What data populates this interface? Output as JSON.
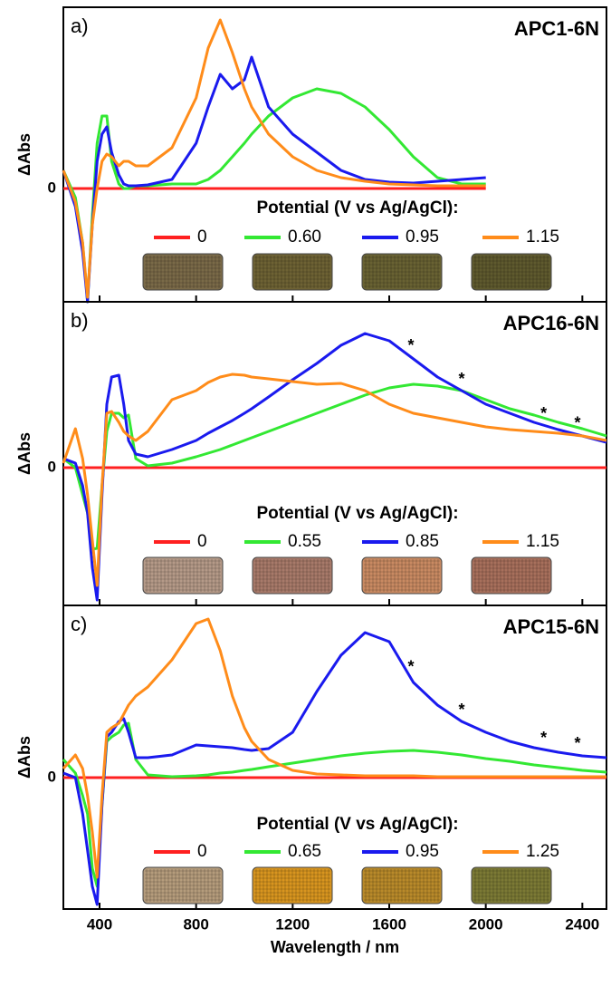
{
  "chart_data": [
    {
      "type": "line",
      "panel_label": "a)",
      "title": "APC1-6N",
      "ylabel": "ΔAbs",
      "legend_title": "Potential (V vs Ag/AgCl):",
      "xlim": [
        250,
        2500
      ],
      "xticks": [
        400,
        800,
        1200,
        1600,
        2000,
        2400
      ],
      "ylim": [
        -1.25,
        2.0
      ],
      "yticks": [
        0
      ],
      "x": [
        250,
        300,
        330,
        350,
        370,
        390,
        410,
        430,
        450,
        480,
        500,
        520,
        550,
        600,
        700,
        800,
        850,
        900,
        950,
        1000,
        1030,
        1100,
        1200,
        1300,
        1400,
        1500,
        1600,
        1700,
        1800,
        1900,
        2000,
        2100,
        2200,
        2300,
        2400,
        2500
      ],
      "series": [
        {
          "name": "0",
          "color": "#ff2020",
          "values": [
            0,
            0,
            0,
            0,
            0,
            0,
            0,
            0,
            0,
            0,
            0,
            0,
            0,
            0,
            0,
            0,
            0,
            0,
            0,
            0,
            0,
            0,
            0,
            0,
            0,
            0,
            0,
            0,
            0,
            0,
            0,
            null,
            null,
            null,
            null,
            null
          ]
        },
        {
          "name": "0.60",
          "color": "#33e833",
          "values": [
            0.2,
            -0.1,
            -0.6,
            -1.25,
            -0.3,
            0.5,
            0.8,
            0.8,
            0.3,
            0.05,
            0.0,
            0.0,
            0.03,
            0.03,
            0.05,
            0.05,
            0.1,
            0.2,
            0.35,
            0.5,
            0.6,
            0.8,
            1.0,
            1.1,
            1.05,
            0.9,
            0.65,
            0.35,
            0.12,
            0.05,
            0.05,
            null,
            null,
            null,
            null,
            null
          ]
        },
        {
          "name": "0.95",
          "color": "#1a1aee",
          "values": [
            0.2,
            -0.2,
            -0.7,
            -1.25,
            -0.4,
            0.3,
            0.6,
            0.68,
            0.4,
            0.15,
            0.05,
            0.03,
            0.03,
            0.04,
            0.1,
            0.5,
            0.9,
            1.26,
            1.1,
            1.2,
            1.45,
            0.9,
            0.6,
            0.4,
            0.2,
            0.1,
            0.07,
            0.06,
            0.08,
            0.1,
            0.12,
            null,
            null,
            null,
            null,
            null
          ]
        },
        {
          "name": "1.15",
          "color": "#ff8c1a",
          "values": [
            0.2,
            -0.15,
            -0.6,
            -1.2,
            -0.4,
            0.0,
            0.3,
            0.38,
            0.35,
            0.25,
            0.3,
            0.3,
            0.25,
            0.25,
            0.45,
            1.0,
            1.55,
            1.86,
            1.5,
            1.1,
            0.9,
            0.6,
            0.35,
            0.2,
            0.12,
            0.08,
            0.05,
            0.04,
            0.03,
            0.03,
            0.03,
            null,
            null,
            null,
            null,
            null
          ]
        }
      ]
    },
    {
      "type": "line",
      "panel_label": "b)",
      "title": "APC16-6N",
      "ylabel": "ΔAbs",
      "legend_title": "Potential (V vs Ag/AgCl):",
      "xlim": [
        250,
        2500
      ],
      "xticks": [
        400,
        800,
        1200,
        1600,
        2000,
        2400
      ],
      "ylim": [
        -1.52,
        1.83
      ],
      "yticks": [
        0
      ],
      "x": [
        250,
        300,
        330,
        350,
        370,
        390,
        410,
        430,
        450,
        480,
        500,
        520,
        550,
        600,
        700,
        800,
        850,
        900,
        950,
        1000,
        1030,
        1100,
        1200,
        1300,
        1400,
        1500,
        1600,
        1700,
        1800,
        1900,
        2000,
        2100,
        2200,
        2300,
        2400,
        2500
      ],
      "annotations": [
        {
          "text": "*",
          "x": 1690
        },
        {
          "text": "*",
          "x": 1900
        },
        {
          "text": "*",
          "x": 2240
        },
        {
          "text": "*",
          "x": 2380
        }
      ],
      "series": [
        {
          "name": "0",
          "color": "#ff2020",
          "values": [
            0,
            0,
            0,
            0,
            0,
            0,
            0,
            0,
            0,
            0,
            0,
            0,
            0,
            0,
            0,
            0,
            0,
            0,
            0,
            0,
            0,
            0,
            0,
            0,
            0,
            0,
            0,
            0,
            0,
            0,
            0,
            0,
            0,
            0,
            0,
            0
          ]
        },
        {
          "name": "0.55",
          "color": "#33e833",
          "values": [
            0.1,
            0.0,
            -0.3,
            -0.5,
            -0.9,
            -0.89,
            -0.2,
            0.4,
            0.6,
            0.6,
            0.55,
            0.58,
            0.1,
            0.02,
            0.05,
            0.12,
            0.16,
            0.2,
            0.25,
            0.3,
            0.33,
            0.4,
            0.5,
            0.6,
            0.7,
            0.8,
            0.88,
            0.92,
            0.9,
            0.85,
            0.75,
            0.65,
            0.58,
            0.5,
            0.43,
            0.35
          ]
        },
        {
          "name": "0.85",
          "color": "#1a1aee",
          "values": [
            0.1,
            0.05,
            -0.2,
            -0.5,
            -1.1,
            -1.46,
            -0.3,
            0.7,
            1.0,
            1.02,
            0.7,
            0.3,
            0.15,
            0.12,
            0.2,
            0.3,
            0.38,
            0.45,
            0.52,
            0.6,
            0.65,
            0.78,
            0.97,
            1.15,
            1.35,
            1.48,
            1.4,
            1.2,
            1.0,
            0.85,
            0.7,
            0.6,
            0.5,
            0.42,
            0.35,
            0.28
          ]
        },
        {
          "name": "1.15",
          "color": "#ff8c1a",
          "values": [
            0.05,
            0.43,
            0.1,
            -0.3,
            -0.8,
            -1.3,
            -0.2,
            0.6,
            0.62,
            0.5,
            0.4,
            0.35,
            0.3,
            0.4,
            0.75,
            0.85,
            0.94,
            1.0,
            1.03,
            1.02,
            1.0,
            0.98,
            0.95,
            0.92,
            0.93,
            0.85,
            0.7,
            0.6,
            0.55,
            0.5,
            0.45,
            0.42,
            0.4,
            0.38,
            0.35,
            0.3
          ]
        }
      ]
    },
    {
      "type": "line",
      "panel_label": "c)",
      "title": "APC15-6N",
      "ylabel": "ΔAbs",
      "legend_title": "Potential (V vs Ag/AgCl):",
      "xlabel": "Wavelength / nm",
      "xlim": [
        250,
        2500
      ],
      "xticks": [
        400,
        800,
        1200,
        1600,
        2000,
        2400
      ],
      "ylim": [
        -1.45,
        1.9
      ],
      "yticks": [
        0
      ],
      "x": [
        250,
        300,
        330,
        350,
        370,
        390,
        410,
        430,
        450,
        480,
        500,
        520,
        550,
        600,
        700,
        800,
        850,
        900,
        950,
        1000,
        1030,
        1100,
        1200,
        1300,
        1400,
        1500,
        1600,
        1700,
        1800,
        1900,
        2000,
        2100,
        2200,
        2300,
        2400,
        2500
      ],
      "annotations": [
        {
          "text": "*",
          "x": 1690
        },
        {
          "text": "*",
          "x": 1900
        },
        {
          "text": "*",
          "x": 2240
        },
        {
          "text": "*",
          "x": 2380
        }
      ],
      "series": [
        {
          "name": "0",
          "color": "#ff2020",
          "values": [
            0,
            0,
            0,
            0,
            0,
            0,
            0,
            0,
            0,
            0,
            0,
            0,
            0,
            0,
            0,
            0,
            0,
            0,
            0,
            0,
            0,
            0,
            0,
            0,
            0,
            0,
            0,
            0,
            0,
            0,
            0,
            0,
            0,
            0,
            0,
            0
          ]
        },
        {
          "name": "0.65",
          "color": "#33e833",
          "values": [
            0.2,
            0.05,
            -0.2,
            -0.4,
            -1.0,
            -1.2,
            -0.3,
            0.4,
            0.45,
            0.5,
            0.58,
            0.6,
            0.2,
            0.03,
            0.01,
            0.02,
            0.03,
            0.05,
            0.06,
            0.08,
            0.09,
            0.12,
            0.16,
            0.2,
            0.24,
            0.27,
            0.29,
            0.3,
            0.28,
            0.25,
            0.21,
            0.18,
            0.14,
            0.11,
            0.08,
            0.06
          ]
        },
        {
          "name": "0.95",
          "color": "#1a1aee",
          "values": [
            0.05,
            0.0,
            -0.4,
            -0.8,
            -1.2,
            -1.4,
            -0.3,
            0.45,
            0.5,
            0.62,
            0.65,
            0.5,
            0.22,
            0.22,
            0.25,
            0.36,
            0.35,
            0.34,
            0.33,
            0.31,
            0.3,
            0.32,
            0.5,
            0.95,
            1.35,
            1.6,
            1.5,
            1.05,
            0.8,
            0.62,
            0.5,
            0.4,
            0.33,
            0.28,
            0.24,
            0.22
          ]
        },
        {
          "name": "1.25",
          "color": "#ff8c1a",
          "values": [
            0.1,
            0.25,
            0.1,
            -0.2,
            -0.6,
            -1.1,
            -0.2,
            0.5,
            0.55,
            0.6,
            0.7,
            0.8,
            0.9,
            1.0,
            1.3,
            1.7,
            1.75,
            1.4,
            0.9,
            0.55,
            0.4,
            0.2,
            0.08,
            0.04,
            0.03,
            0.02,
            0.02,
            0.02,
            0.01,
            0.01,
            0.01,
            0.01,
            0.01,
            0.01,
            0.01,
            0.01
          ]
        }
      ]
    }
  ]
}
